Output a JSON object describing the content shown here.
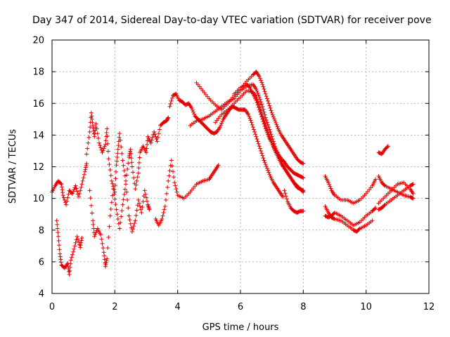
{
  "chart_data": {
    "type": "scatter",
    "title": "Day 347 of 2014, Sidereal Day-to-day VTEC variation (SDTVAR) for receiver pove",
    "xlabel": "GPS time / hours",
    "ylabel": "SDTVAR / TECUs",
    "xlim": [
      0,
      12
    ],
    "ylim": [
      4,
      20
    ],
    "xticks": [
      0,
      2,
      4,
      6,
      8,
      10,
      12
    ],
    "yticks": [
      4,
      6,
      8,
      10,
      12,
      14,
      16,
      18,
      20
    ],
    "grid": true,
    "marker": "+",
    "color": "#e00000",
    "series": [
      {
        "name": "noisy-start-a",
        "points": [
          [
            0.0,
            10.4
          ],
          [
            0.1,
            10.8
          ],
          [
            0.2,
            11.1
          ],
          [
            0.3,
            10.9
          ],
          [
            0.35,
            10.2
          ],
          [
            0.45,
            9.6
          ],
          [
            0.55,
            10.5
          ],
          [
            0.65,
            10.3
          ],
          [
            0.75,
            10.8
          ],
          [
            0.85,
            10.1
          ],
          [
            0.95,
            10.9
          ],
          [
            1.05,
            11.7
          ],
          [
            1.1,
            12.2
          ]
        ]
      },
      {
        "name": "noisy-start-b",
        "points": [
          [
            0.15,
            8.6
          ],
          [
            0.2,
            7.6
          ],
          [
            0.25,
            6.5
          ],
          [
            0.3,
            5.8
          ],
          [
            0.4,
            5.6
          ],
          [
            0.5,
            5.9
          ],
          [
            0.55,
            5.2
          ],
          [
            0.6,
            6.1
          ],
          [
            0.7,
            6.8
          ],
          [
            0.8,
            7.6
          ],
          [
            0.9,
            6.9
          ],
          [
            0.95,
            7.5
          ]
        ]
      },
      {
        "name": "noisy-start-c",
        "points": [
          [
            1.1,
            12.8
          ],
          [
            1.2,
            14.2
          ],
          [
            1.25,
            15.4
          ],
          [
            1.3,
            14.6
          ],
          [
            1.35,
            13.9
          ],
          [
            1.4,
            14.7
          ],
          [
            1.5,
            13.5
          ],
          [
            1.6,
            12.9
          ],
          [
            1.7,
            13.4
          ],
          [
            1.75,
            14.4
          ],
          [
            1.8,
            12.5
          ],
          [
            1.9,
            11.1
          ],
          [
            2.0,
            10.4
          ],
          [
            2.05,
            12.1
          ],
          [
            2.1,
            13.1
          ],
          [
            2.15,
            14.1
          ],
          [
            2.25,
            12.4
          ],
          [
            2.35,
            11.1
          ],
          [
            2.45,
            12.6
          ],
          [
            2.5,
            13.1
          ],
          [
            2.55,
            12.0
          ],
          [
            2.65,
            10.6
          ],
          [
            2.75,
            11.6
          ],
          [
            2.8,
            12.9
          ],
          [
            2.9,
            13.3
          ],
          [
            3.0,
            12.9
          ],
          [
            3.05,
            13.9
          ],
          [
            3.15,
            13.5
          ],
          [
            3.25,
            14.2
          ],
          [
            3.35,
            13.6
          ],
          [
            3.45,
            14.6
          ],
          [
            3.55,
            14.8
          ],
          [
            3.65,
            14.9
          ],
          [
            3.7,
            15.1
          ]
        ]
      },
      {
        "name": "noisy-start-d",
        "points": [
          [
            1.2,
            10.5
          ],
          [
            1.3,
            8.6
          ],
          [
            1.35,
            7.6
          ],
          [
            1.45,
            8.1
          ],
          [
            1.55,
            7.7
          ],
          [
            1.65,
            6.6
          ],
          [
            1.7,
            5.7
          ],
          [
            1.75,
            6.2
          ],
          [
            1.85,
            8.9
          ],
          [
            1.95,
            10.6
          ],
          [
            2.05,
            9.3
          ],
          [
            2.15,
            8.1
          ],
          [
            2.25,
            9.6
          ],
          [
            2.35,
            10.9
          ],
          [
            2.45,
            8.9
          ],
          [
            2.55,
            7.9
          ],
          [
            2.65,
            8.6
          ],
          [
            2.75,
            9.9
          ],
          [
            2.85,
            9.1
          ],
          [
            2.95,
            10.5
          ],
          [
            3.05,
            9.6
          ],
          [
            3.1,
            9.3
          ]
        ]
      },
      {
        "name": "rising-arc",
        "points": [
          [
            3.3,
            8.7
          ],
          [
            3.4,
            8.3
          ],
          [
            3.5,
            8.7
          ],
          [
            3.6,
            9.5
          ],
          [
            3.7,
            11.1
          ],
          [
            3.8,
            12.4
          ],
          [
            3.9,
            11.0
          ],
          [
            4.0,
            10.2
          ],
          [
            4.2,
            10.0
          ],
          [
            4.4,
            10.4
          ],
          [
            4.6,
            10.9
          ],
          [
            4.8,
            11.1
          ],
          [
            5.0,
            11.2
          ],
          [
            5.1,
            11.5
          ],
          [
            5.2,
            11.8
          ],
          [
            5.3,
            12.1
          ]
        ]
      },
      {
        "name": "arc-16",
        "points": [
          [
            3.75,
            15.8
          ],
          [
            3.85,
            16.5
          ],
          [
            3.95,
            16.6
          ],
          [
            4.05,
            16.2
          ],
          [
            4.15,
            16.1
          ],
          [
            4.25,
            15.9
          ],
          [
            4.35,
            16.0
          ],
          [
            4.45,
            15.7
          ],
          [
            4.55,
            15.2
          ],
          [
            4.65,
            15.0
          ],
          [
            4.75,
            14.8
          ],
          [
            4.85,
            14.6
          ],
          [
            4.95,
            14.4
          ],
          [
            5.05,
            14.2
          ],
          [
            5.15,
            14.1
          ],
          [
            5.25,
            14.2
          ],
          [
            5.35,
            14.5
          ],
          [
            5.45,
            15.0
          ],
          [
            5.55,
            15.3
          ],
          [
            5.65,
            15.6
          ],
          [
            5.75,
            15.8
          ],
          [
            5.85,
            15.7
          ],
          [
            5.95,
            15.6
          ],
          [
            6.05,
            15.6
          ],
          [
            6.15,
            15.6
          ],
          [
            6.25,
            15.3
          ],
          [
            6.35,
            14.8
          ],
          [
            6.45,
            14.2
          ],
          [
            6.55,
            13.6
          ],
          [
            6.65,
            13.0
          ],
          [
            6.75,
            12.4
          ],
          [
            6.85,
            11.9
          ],
          [
            6.95,
            11.4
          ],
          [
            7.05,
            11.0
          ],
          [
            7.15,
            10.7
          ],
          [
            7.25,
            10.4
          ],
          [
            7.35,
            10.1
          ]
        ]
      },
      {
        "name": "arc-17a",
        "points": [
          [
            4.4,
            14.6
          ],
          [
            4.6,
            14.9
          ],
          [
            4.8,
            15.0
          ],
          [
            5.0,
            15.2
          ],
          [
            5.2,
            15.5
          ],
          [
            5.4,
            15.8
          ],
          [
            5.6,
            16.1
          ],
          [
            5.8,
            16.3
          ],
          [
            6.0,
            16.8
          ],
          [
            6.2,
            17.1
          ],
          [
            6.4,
            17.2
          ],
          [
            6.5,
            16.9
          ],
          [
            6.6,
            16.4
          ],
          [
            6.7,
            15.8
          ],
          [
            6.8,
            15.1
          ],
          [
            6.9,
            14.5
          ],
          [
            7.0,
            13.9
          ],
          [
            7.1,
            13.3
          ],
          [
            7.2,
            12.8
          ],
          [
            7.3,
            12.3
          ],
          [
            7.4,
            11.9
          ],
          [
            7.5,
            11.6
          ],
          [
            7.6,
            11.3
          ],
          [
            7.7,
            11.0
          ],
          [
            7.8,
            10.8
          ],
          [
            7.9,
            10.6
          ],
          [
            8.0,
            10.5
          ]
        ]
      },
      {
        "name": "arc-17b",
        "points": [
          [
            5.2,
            14.8
          ],
          [
            5.4,
            15.3
          ],
          [
            5.6,
            15.6
          ],
          [
            5.8,
            16.0
          ],
          [
            6.0,
            16.4
          ],
          [
            6.2,
            16.8
          ],
          [
            6.4,
            16.7
          ],
          [
            6.5,
            16.4
          ],
          [
            6.6,
            15.9
          ],
          [
            6.7,
            15.2
          ],
          [
            6.8,
            14.6
          ],
          [
            6.9,
            14.0
          ],
          [
            7.0,
            13.5
          ],
          [
            7.1,
            13.0
          ],
          [
            7.2,
            12.6
          ],
          [
            7.3,
            12.2
          ],
          [
            7.4,
            11.9
          ],
          [
            7.5,
            11.6
          ],
          [
            7.6,
            11.3
          ],
          [
            7.7,
            11.0
          ],
          [
            7.8,
            10.7
          ],
          [
            7.9,
            10.6
          ],
          [
            8.0,
            10.4
          ]
        ]
      },
      {
        "name": "arc-18",
        "points": [
          [
            4.6,
            17.3
          ],
          [
            4.8,
            16.8
          ],
          [
            5.0,
            16.3
          ],
          [
            5.2,
            15.9
          ],
          [
            5.4,
            15.6
          ],
          [
            5.6,
            16.0
          ],
          [
            5.8,
            16.5
          ],
          [
            6.0,
            16.9
          ],
          [
            6.2,
            17.4
          ],
          [
            6.4,
            17.8
          ],
          [
            6.5,
            18.0
          ],
          [
            6.6,
            17.7
          ],
          [
            6.7,
            17.2
          ],
          [
            6.8,
            16.6
          ],
          [
            6.9,
            16.0
          ],
          [
            7.0,
            15.4
          ],
          [
            7.1,
            14.9
          ],
          [
            7.2,
            14.4
          ],
          [
            7.3,
            14.0
          ],
          [
            7.4,
            13.7
          ],
          [
            7.5,
            13.4
          ],
          [
            7.6,
            13.1
          ],
          [
            7.7,
            12.8
          ],
          [
            7.8,
            12.5
          ],
          [
            7.9,
            12.3
          ],
          [
            8.0,
            12.2
          ]
        ]
      },
      {
        "name": "arc-17c",
        "points": [
          [
            5.8,
            16.6
          ],
          [
            6.0,
            17.0
          ],
          [
            6.2,
            17.2
          ],
          [
            6.3,
            17.0
          ],
          [
            6.4,
            16.6
          ],
          [
            6.5,
            16.2
          ],
          [
            6.6,
            15.6
          ],
          [
            6.7,
            15.0
          ],
          [
            6.8,
            14.4
          ],
          [
            6.9,
            13.9
          ],
          [
            7.0,
            13.5
          ],
          [
            7.1,
            13.1
          ],
          [
            7.2,
            12.8
          ],
          [
            7.3,
            12.5
          ],
          [
            7.4,
            12.3
          ],
          [
            7.5,
            12.0
          ],
          [
            7.6,
            11.8
          ],
          [
            7.7,
            11.6
          ],
          [
            7.8,
            11.5
          ],
          [
            7.9,
            11.4
          ],
          [
            8.0,
            11.3
          ]
        ]
      },
      {
        "name": "tail-8",
        "points": [
          [
            7.4,
            10.5
          ],
          [
            7.5,
            9.8
          ],
          [
            7.6,
            9.4
          ],
          [
            7.7,
            9.2
          ],
          [
            7.8,
            9.1
          ],
          [
            7.9,
            9.2
          ],
          [
            8.0,
            9.2
          ]
        ]
      },
      {
        "name": "right-upper",
        "points": [
          [
            8.7,
            11.4
          ],
          [
            8.8,
            11.0
          ],
          [
            8.9,
            10.5
          ],
          [
            9.0,
            10.2
          ],
          [
            9.2,
            9.9
          ],
          [
            9.4,
            9.9
          ],
          [
            9.6,
            9.7
          ],
          [
            9.8,
            9.9
          ],
          [
            10.0,
            10.3
          ],
          [
            10.2,
            10.8
          ],
          [
            10.3,
            11.2
          ]
        ]
      },
      {
        "name": "right-lower",
        "points": [
          [
            8.7,
            9.5
          ],
          [
            8.8,
            9.1
          ],
          [
            8.9,
            8.8
          ],
          [
            9.0,
            8.7
          ],
          [
            9.2,
            8.6
          ],
          [
            9.4,
            8.3
          ],
          [
            9.6,
            8.0
          ],
          [
            9.7,
            7.9
          ],
          [
            9.8,
            8.1
          ],
          [
            10.0,
            8.3
          ],
          [
            10.2,
            8.6
          ]
        ]
      },
      {
        "name": "right-mid",
        "points": [
          [
            8.7,
            8.9
          ],
          [
            8.8,
            8.8
          ],
          [
            8.9,
            8.9
          ],
          [
            9.0,
            9.1
          ],
          [
            9.2,
            8.9
          ],
          [
            9.4,
            8.6
          ],
          [
            9.6,
            8.3
          ],
          [
            9.8,
            8.5
          ],
          [
            10.0,
            8.9
          ],
          [
            10.2,
            9.2
          ],
          [
            10.3,
            9.4
          ]
        ]
      },
      {
        "name": "far-right-top",
        "points": [
          [
            10.4,
            12.9
          ],
          [
            10.5,
            12.8
          ],
          [
            10.6,
            13.1
          ],
          [
            10.7,
            13.3
          ]
        ]
      },
      {
        "name": "far-right-a",
        "points": [
          [
            10.4,
            11.4
          ],
          [
            10.5,
            11.0
          ],
          [
            10.6,
            10.8
          ],
          [
            10.8,
            10.6
          ],
          [
            11.0,
            10.4
          ],
          [
            11.2,
            10.2
          ],
          [
            11.4,
            10.1
          ],
          [
            11.5,
            10.0
          ]
        ]
      },
      {
        "name": "far-right-b",
        "points": [
          [
            10.4,
            9.3
          ],
          [
            10.5,
            9.4
          ],
          [
            10.6,
            9.6
          ],
          [
            10.8,
            9.9
          ],
          [
            11.0,
            10.2
          ],
          [
            11.2,
            10.5
          ],
          [
            11.4,
            10.8
          ],
          [
            11.5,
            10.9
          ]
        ]
      },
      {
        "name": "far-right-c",
        "points": [
          [
            10.4,
            9.7
          ],
          [
            10.6,
            10.1
          ],
          [
            10.8,
            10.5
          ],
          [
            11.0,
            10.9
          ],
          [
            11.2,
            11.0
          ],
          [
            11.4,
            10.6
          ],
          [
            11.5,
            10.3
          ]
        ]
      }
    ]
  }
}
